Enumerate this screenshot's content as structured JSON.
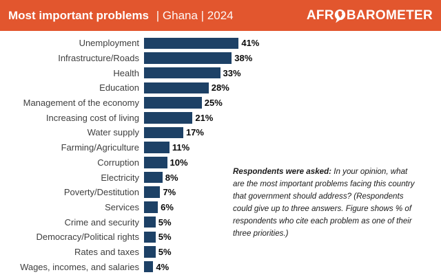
{
  "header": {
    "title_bold": "Most important problems",
    "title_rest": "| Ghana | 2024",
    "logo_pre": "AFR",
    "logo_post": "BAROMETER"
  },
  "annotation": {
    "lead": "Respondents were asked:",
    "body": " In your opinion, what are the most important problems facing this country that government should address? (Respondents could give up to three answers. Figure shows % of respondents who cite each problem as one of their three priorities.)"
  },
  "colors": {
    "header_orange": "#E2562E",
    "bar_navy": "#1D4166",
    "category_text": "#3e3e3e",
    "value_text": "#0a0a0a"
  },
  "chart_data": {
    "type": "bar",
    "orientation": "horizontal",
    "title": "Most important problems | Ghana | 2024",
    "categories": [
      "Unemployment",
      "Infrastructure/Roads",
      "Health",
      "Education",
      "Management of the economy",
      "Increasing cost of living",
      "Water supply",
      "Farming/Agriculture",
      "Corruption",
      "Electricity",
      "Poverty/Destitution",
      "Services",
      "Crime and security",
      "Democracy/Political rights",
      "Rates and taxes",
      "Wages, incomes, and salaries"
    ],
    "values": [
      41,
      38,
      33,
      28,
      25,
      21,
      17,
      11,
      10,
      8,
      7,
      6,
      5,
      5,
      5,
      4
    ],
    "value_suffix": "%",
    "xlim": [
      0,
      45
    ],
    "grid": false,
    "legend": false,
    "bar_color": "#1D4166",
    "data_labels": true
  }
}
